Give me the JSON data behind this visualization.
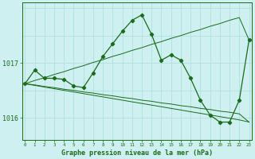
{
  "title": "Graphe pression niveau de la mer (hPa)",
  "bg_color": "#cef0f0",
  "line_color": "#1a6b1a",
  "grid_color": "#b0e0e0",
  "x_hours": [
    0,
    1,
    2,
    3,
    4,
    5,
    6,
    7,
    8,
    9,
    10,
    11,
    12,
    13,
    14,
    15,
    16,
    17,
    18,
    19,
    20,
    21,
    22,
    23
  ],
  "pressure_main": [
    1016.62,
    1016.87,
    1016.72,
    1016.72,
    1016.7,
    1016.58,
    1016.55,
    1016.82,
    1017.12,
    1017.35,
    1017.58,
    1017.78,
    1017.88,
    1017.52,
    1017.05,
    1017.15,
    1017.05,
    1016.72,
    1016.32,
    1016.05,
    1015.92,
    1015.92,
    1016.32,
    1017.42
  ],
  "trend_upper": [
    1016.62,
    1016.68,
    1016.73,
    1016.79,
    1016.84,
    1016.9,
    1016.95,
    1017.01,
    1017.06,
    1017.12,
    1017.17,
    1017.23,
    1017.28,
    1017.34,
    1017.39,
    1017.45,
    1017.5,
    1017.56,
    1017.61,
    1017.67,
    1017.72,
    1017.78,
    1017.83,
    1017.42
  ],
  "trend_lower1": [
    1016.62,
    1016.6,
    1016.57,
    1016.55,
    1016.52,
    1016.5,
    1016.47,
    1016.45,
    1016.42,
    1016.4,
    1016.37,
    1016.35,
    1016.32,
    1016.3,
    1016.27,
    1016.25,
    1016.22,
    1016.2,
    1016.17,
    1016.15,
    1016.12,
    1016.1,
    1016.07,
    1015.92
  ],
  "trend_lower2": [
    1016.62,
    1016.59,
    1016.56,
    1016.53,
    1016.5,
    1016.47,
    1016.44,
    1016.41,
    1016.38,
    1016.35,
    1016.32,
    1016.29,
    1016.26,
    1016.23,
    1016.2,
    1016.17,
    1016.14,
    1016.11,
    1016.08,
    1016.05,
    1016.02,
    1015.99,
    1015.96,
    1015.92
  ],
  "ylim_low": 1015.6,
  "ylim_high": 1018.1,
  "ytick_vals": [
    1016.0,
    1017.0
  ],
  "ytick_labels": [
    "1016",
    "1017"
  ],
  "figsize": [
    3.2,
    2.0
  ],
  "dpi": 100
}
